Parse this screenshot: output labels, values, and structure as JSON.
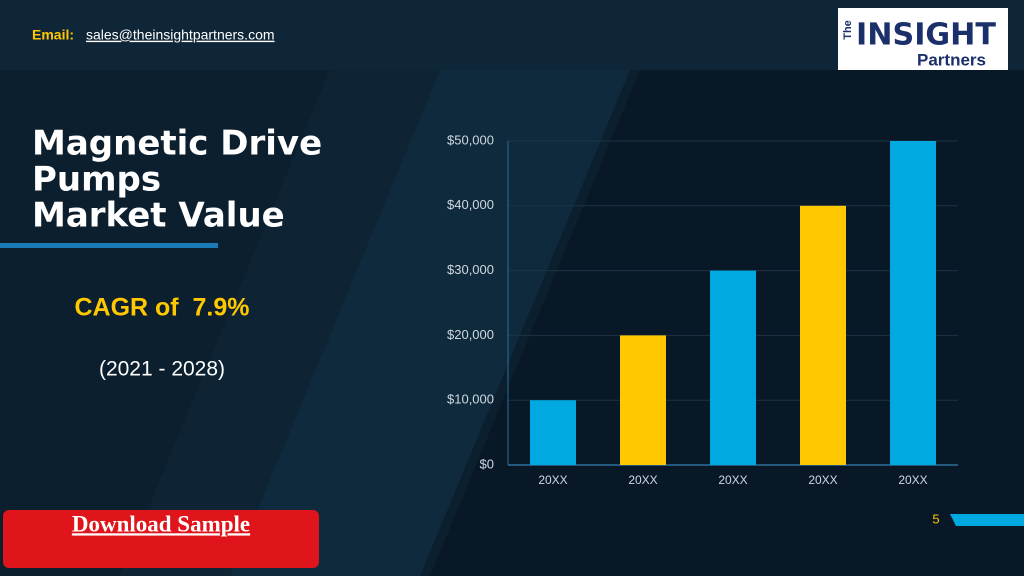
{
  "header": {
    "email_label": "Email:",
    "email": "sales@theinsightpartners.com",
    "logo_the": "The",
    "logo_insight": "INSIGHT",
    "logo_partners": "Partners"
  },
  "slide": {
    "title_lines": [
      "Magnetic Drive",
      "Pumps",
      "Market Value"
    ],
    "cagr": "CAGR of  7.9%",
    "period": "(2021 - 2028)",
    "page_number": "5",
    "download": "Download Sample"
  },
  "chart_data": {
    "type": "bar",
    "categories": [
      "20XX",
      "20XX",
      "20XX",
      "20XX",
      "20XX"
    ],
    "values": [
      10000,
      20000,
      30000,
      40000,
      50000
    ],
    "colors": [
      "#00a9e0",
      "#ffc800",
      "#00a9e0",
      "#ffc800",
      "#00a9e0"
    ],
    "ylim": [
      0,
      50000
    ],
    "yticks": [
      {
        "value": 0,
        "label": "$0"
      },
      {
        "value": 10000,
        "label": "$10,000"
      },
      {
        "value": 20000,
        "label": "$20,000"
      },
      {
        "value": 30000,
        "label": "$30,000"
      },
      {
        "value": 40000,
        "label": "$40,000"
      },
      {
        "value": 50000,
        "label": "$50,000"
      }
    ],
    "grid": true
  }
}
